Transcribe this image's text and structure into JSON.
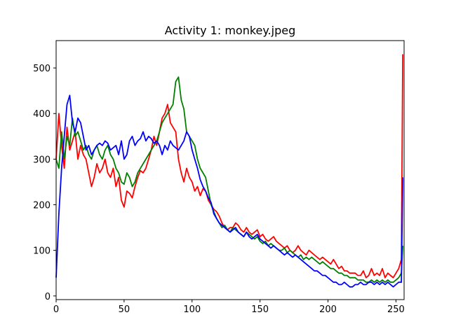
{
  "chart_data": {
    "type": "line",
    "title": "Activity 1: monkey.jpeg",
    "xlabel": "",
    "ylabel": "",
    "xlim": [
      0,
      256
    ],
    "ylim": [
      -8,
      560
    ],
    "xticks": [
      0,
      50,
      100,
      150,
      200,
      250
    ],
    "yticks": [
      0,
      100,
      200,
      300,
      400,
      500
    ],
    "grid": false,
    "legend": "none",
    "series": [
      {
        "color": "#ff0000",
        "x": [
          0,
          2,
          4,
          6,
          8,
          10,
          12,
          14,
          16,
          18,
          20,
          22,
          24,
          26,
          28,
          30,
          32,
          34,
          36,
          38,
          40,
          42,
          44,
          46,
          48,
          50,
          52,
          54,
          56,
          58,
          60,
          62,
          64,
          66,
          68,
          70,
          72,
          74,
          76,
          78,
          80,
          82,
          84,
          86,
          88,
          90,
          92,
          94,
          96,
          98,
          100,
          102,
          104,
          106,
          108,
          110,
          112,
          114,
          116,
          118,
          120,
          122,
          124,
          126,
          128,
          130,
          132,
          134,
          136,
          138,
          140,
          142,
          144,
          146,
          148,
          150,
          152,
          154,
          156,
          158,
          160,
          162,
          164,
          166,
          168,
          170,
          172,
          174,
          176,
          178,
          180,
          182,
          184,
          186,
          188,
          190,
          192,
          194,
          196,
          198,
          200,
          202,
          204,
          206,
          208,
          210,
          212,
          214,
          216,
          218,
          220,
          222,
          224,
          226,
          228,
          230,
          232,
          234,
          236,
          238,
          240,
          242,
          244,
          246,
          248,
          250,
          252,
          254,
          255
        ],
        "values": [
          300,
          400,
          330,
          280,
          370,
          320,
          340,
          360,
          300,
          330,
          310,
          300,
          270,
          240,
          260,
          290,
          270,
          280,
          300,
          270,
          260,
          280,
          240,
          260,
          210,
          195,
          230,
          225,
          215,
          240,
          260,
          275,
          270,
          280,
          300,
          320,
          350,
          330,
          360,
          390,
          400,
          420,
          380,
          370,
          360,
          300,
          270,
          250,
          280,
          260,
          250,
          230,
          240,
          220,
          235,
          230,
          210,
          200,
          190,
          185,
          175,
          160,
          150,
          145,
          150,
          150,
          160,
          155,
          145,
          140,
          150,
          140,
          135,
          140,
          145,
          130,
          135,
          125,
          120,
          125,
          130,
          120,
          115,
          110,
          105,
          110,
          100,
          95,
          100,
          110,
          100,
          95,
          90,
          100,
          95,
          90,
          85,
          80,
          85,
          80,
          75,
          70,
          80,
          70,
          60,
          65,
          55,
          55,
          50,
          50,
          50,
          45,
          45,
          55,
          40,
          45,
          60,
          45,
          50,
          45,
          60,
          40,
          50,
          45,
          40,
          50,
          60,
          80,
          530
        ]
      },
      {
        "color": "#008000",
        "x": [
          0,
          2,
          4,
          6,
          8,
          10,
          12,
          14,
          16,
          18,
          20,
          22,
          24,
          26,
          28,
          30,
          32,
          34,
          36,
          38,
          40,
          42,
          44,
          46,
          48,
          50,
          52,
          54,
          56,
          58,
          60,
          62,
          64,
          66,
          68,
          70,
          72,
          74,
          76,
          78,
          80,
          82,
          84,
          86,
          88,
          90,
          92,
          94,
          96,
          98,
          100,
          102,
          104,
          106,
          108,
          110,
          112,
          114,
          116,
          118,
          120,
          122,
          124,
          126,
          128,
          130,
          132,
          134,
          136,
          138,
          140,
          142,
          144,
          146,
          148,
          150,
          152,
          154,
          156,
          158,
          160,
          162,
          164,
          166,
          168,
          170,
          172,
          174,
          176,
          178,
          180,
          182,
          184,
          186,
          188,
          190,
          192,
          194,
          196,
          198,
          200,
          202,
          204,
          206,
          208,
          210,
          212,
          214,
          216,
          218,
          220,
          222,
          224,
          226,
          228,
          230,
          232,
          234,
          236,
          238,
          240,
          242,
          244,
          246,
          248,
          250,
          252,
          254,
          255
        ],
        "values": [
          300,
          280,
          360,
          300,
          350,
          330,
          390,
          350,
          360,
          340,
          320,
          330,
          310,
          300,
          320,
          330,
          310,
          300,
          320,
          330,
          310,
          300,
          280,
          270,
          250,
          245,
          270,
          260,
          240,
          250,
          270,
          280,
          290,
          300,
          310,
          320,
          330,
          340,
          360,
          380,
          390,
          400,
          410,
          420,
          470,
          480,
          430,
          410,
          360,
          350,
          340,
          330,
          300,
          280,
          270,
          260,
          230,
          200,
          185,
          170,
          160,
          150,
          155,
          145,
          140,
          150,
          145,
          140,
          135,
          130,
          140,
          135,
          130,
          125,
          130,
          120,
          115,
          120,
          110,
          115,
          110,
          105,
          100,
          100,
          105,
          95,
          100,
          95,
          90,
          85,
          90,
          80,
          85,
          80,
          85,
          80,
          75,
          70,
          75,
          70,
          65,
          60,
          60,
          55,
          50,
          50,
          45,
          45,
          40,
          40,
          40,
          35,
          35,
          35,
          30,
          30,
          35,
          30,
          35,
          30,
          35,
          30,
          35,
          30,
          30,
          35,
          40,
          50,
          110
        ]
      },
      {
        "color": "#0000ff",
        "x": [
          0,
          2,
          4,
          6,
          8,
          10,
          12,
          14,
          16,
          18,
          20,
          22,
          24,
          26,
          28,
          30,
          32,
          34,
          36,
          38,
          40,
          42,
          44,
          46,
          48,
          50,
          52,
          54,
          56,
          58,
          60,
          62,
          64,
          66,
          68,
          70,
          72,
          74,
          76,
          78,
          80,
          82,
          84,
          86,
          88,
          90,
          92,
          94,
          96,
          98,
          100,
          102,
          104,
          106,
          108,
          110,
          112,
          114,
          116,
          118,
          120,
          122,
          124,
          126,
          128,
          130,
          132,
          134,
          136,
          138,
          140,
          142,
          144,
          146,
          148,
          150,
          152,
          154,
          156,
          158,
          160,
          162,
          164,
          166,
          168,
          170,
          172,
          174,
          176,
          178,
          180,
          182,
          184,
          186,
          188,
          190,
          192,
          194,
          196,
          198,
          200,
          202,
          204,
          206,
          208,
          210,
          212,
          214,
          216,
          218,
          220,
          222,
          224,
          226,
          228,
          230,
          232,
          234,
          236,
          238,
          240,
          242,
          244,
          246,
          248,
          250,
          252,
          254,
          255
        ],
        "values": [
          40,
          180,
          280,
          350,
          420,
          440,
          380,
          360,
          390,
          380,
          350,
          320,
          330,
          310,
          320,
          330,
          335,
          330,
          340,
          335,
          320,
          325,
          330,
          310,
          340,
          300,
          310,
          340,
          350,
          330,
          340,
          345,
          360,
          340,
          350,
          345,
          335,
          340,
          330,
          310,
          330,
          320,
          340,
          330,
          325,
          320,
          330,
          340,
          360,
          350,
          320,
          300,
          280,
          255,
          240,
          230,
          215,
          205,
          180,
          170,
          160,
          155,
          150,
          145,
          140,
          145,
          150,
          140,
          135,
          130,
          140,
          130,
          125,
          130,
          135,
          125,
          120,
          115,
          110,
          105,
          110,
          105,
          100,
          95,
          90,
          95,
          90,
          85,
          90,
          85,
          80,
          75,
          70,
          65,
          60,
          55,
          55,
          50,
          45,
          45,
          40,
          35,
          30,
          30,
          25,
          25,
          30,
          25,
          20,
          20,
          25,
          25,
          30,
          25,
          25,
          30,
          30,
          25,
          30,
          25,
          30,
          25,
          30,
          25,
          20,
          25,
          30,
          30,
          260
        ]
      }
    ]
  }
}
